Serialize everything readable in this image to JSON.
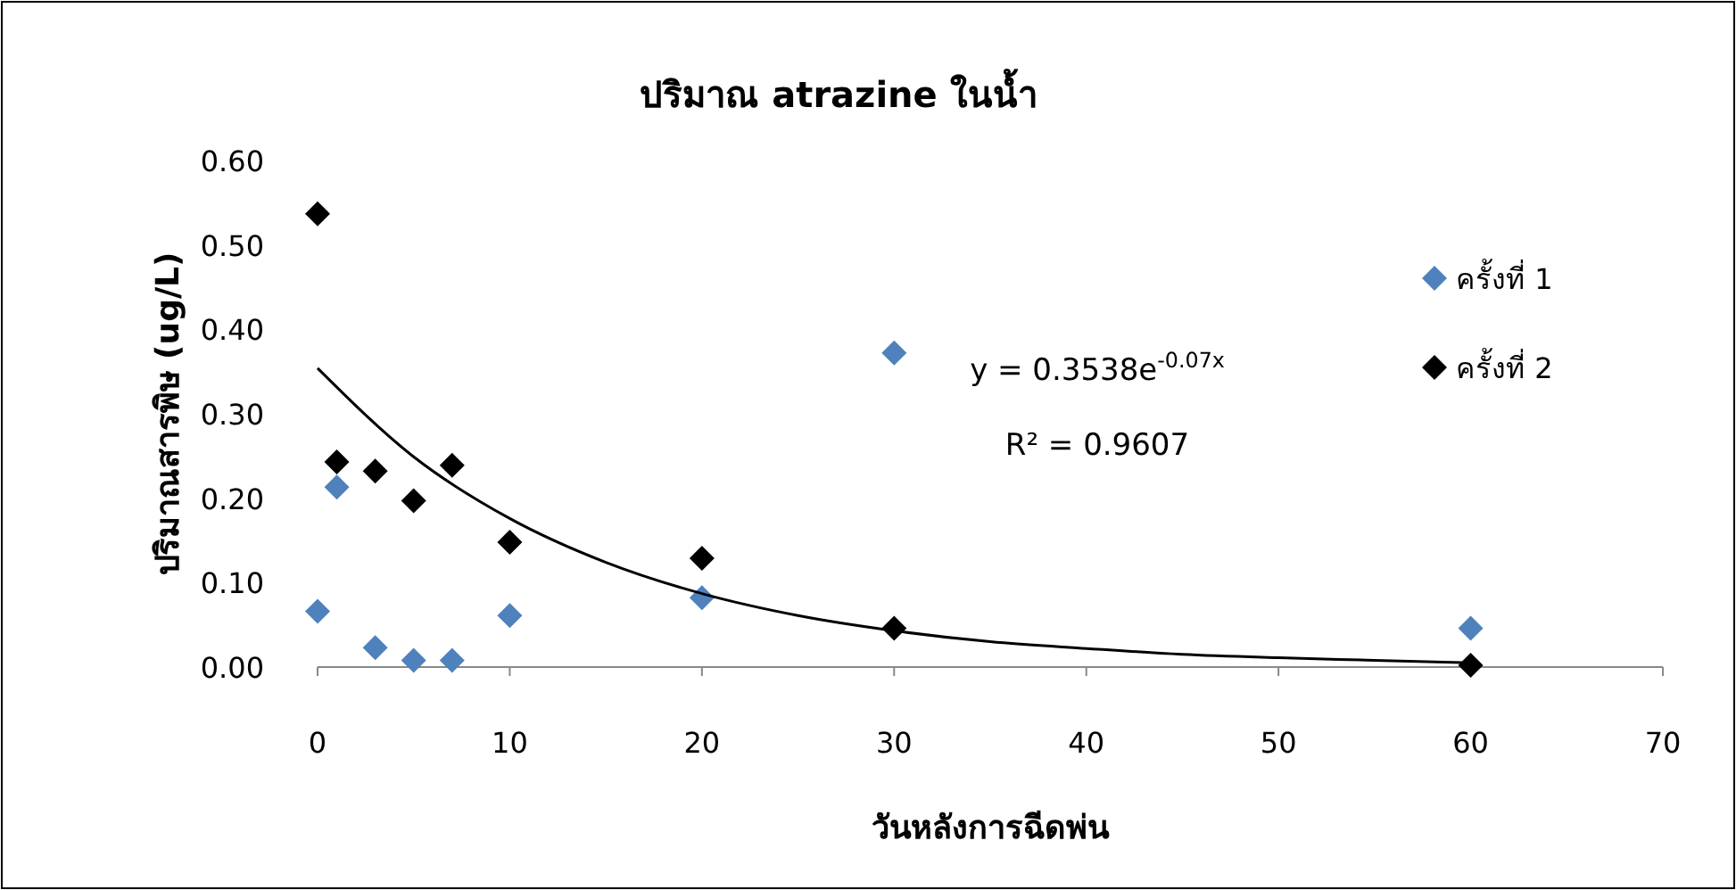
{
  "chart_data": {
    "type": "scatter",
    "title": "ปริมาณ atrazine ในน้ำ",
    "xlabel": "วันหลังการฉีดพ่น",
    "ylabel": "ปริมาณสารพิษ (ug/L)",
    "xlim": [
      0,
      70
    ],
    "xticks": [
      0,
      10,
      20,
      30,
      40,
      50,
      60,
      70
    ],
    "ylim": [
      0,
      0.6
    ],
    "yticks": [
      {
        "value": 0,
        "label": "0.00"
      },
      {
        "value": 0.1,
        "label": "0.10"
      },
      {
        "value": 0.2,
        "label": "0.20"
      },
      {
        "value": 0.3,
        "label": "0.30"
      },
      {
        "value": 0.4,
        "label": "0.40"
      },
      {
        "value": 0.5,
        "label": "0.50"
      },
      {
        "value": 0.6,
        "label": "0.60"
      }
    ],
    "marker": "diamond",
    "legend": "right",
    "grid": false,
    "annotations": [
      "y = 0.3538e$^{-0.07x}$",
      "R² = 0.9607"
    ],
    "series": [
      {
        "name": "ครั้งที่ 1",
        "color": "#4f81bd",
        "x": [
          0,
          1,
          3,
          5,
          7,
          10,
          20,
          30,
          60
        ],
        "values": [
          0.066,
          0.213,
          0.023,
          0.008,
          0.008,
          0.061,
          0.082,
          0.372,
          0.046
        ]
      },
      {
        "name": "ครั้งที่ 2",
        "color": "#000000",
        "x": [
          0,
          1,
          3,
          5,
          7,
          10,
          20,
          30,
          60
        ],
        "values": [
          0.537,
          0.243,
          0.232,
          0.197,
          0.239,
          0.148,
          0.129,
          0.046,
          0.002
        ]
      },
      {
        "type": "line",
        "marker": "none",
        "color": "#000000",
        "x": [
          0,
          5,
          10,
          15,
          20,
          25,
          30,
          35,
          40,
          45,
          50,
          55,
          60
        ],
        "values": [
          0.354,
          0.249,
          0.176,
          0.124,
          0.087,
          0.061,
          0.043,
          0.03,
          0.022,
          0.015,
          0.011,
          0.008,
          0.005
        ]
      }
    ]
  }
}
